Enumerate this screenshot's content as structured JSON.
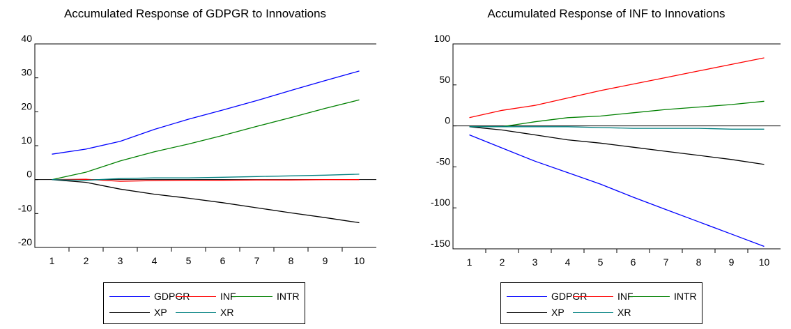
{
  "legend_series": [
    "GDPGR",
    "INF",
    "INTR",
    "XP",
    "XR"
  ],
  "colors": {
    "GDPGR": "#0000ff",
    "INF": "#ff0000",
    "INTR": "#008000",
    "XP": "#000000",
    "XR": "#008080"
  },
  "chart_data": [
    {
      "type": "line",
      "title": "Accumulated Response of GDPGR to Innovations",
      "x": [
        1,
        2,
        3,
        4,
        5,
        6,
        7,
        8,
        9,
        10
      ],
      "yticks": [
        40,
        30,
        20,
        10,
        0,
        -10,
        -20
      ],
      "ylim": [
        -20,
        40
      ],
      "series": [
        {
          "name": "GDPGR",
          "values": [
            7.5,
            9.0,
            11.3,
            14.8,
            17.8,
            20.5,
            23.3,
            26.3,
            29.2,
            32.0
          ]
        },
        {
          "name": "INF",
          "values": [
            0,
            0.1,
            -0.5,
            -0.3,
            -0.2,
            -0.2,
            -0.1,
            -0.1,
            0,
            0
          ]
        },
        {
          "name": "INTR",
          "values": [
            0,
            2.2,
            5.5,
            8.2,
            10.5,
            13.0,
            15.7,
            18.3,
            21.0,
            23.5
          ]
        },
        {
          "name": "XP",
          "values": [
            0,
            -0.8,
            -2.8,
            -4.3,
            -5.5,
            -6.8,
            -8.3,
            -9.8,
            -11.2,
            -12.7
          ]
        },
        {
          "name": "XR",
          "values": [
            0,
            -0.2,
            0.3,
            0.5,
            0.5,
            0.7,
            0.9,
            1.1,
            1.3,
            1.6
          ]
        }
      ]
    },
    {
      "type": "line",
      "title": "Accumulated Response of INF to Innovations",
      "x": [
        1,
        2,
        3,
        4,
        5,
        6,
        7,
        8,
        9,
        10
      ],
      "yticks": [
        100,
        50,
        0,
        -50,
        -100,
        -150
      ],
      "ylim": [
        -150,
        100
      ],
      "series": [
        {
          "name": "GDPGR",
          "values": [
            -11,
            -27,
            -43,
            -57,
            -71,
            -87,
            -102,
            -117,
            -132,
            -147
          ]
        },
        {
          "name": "INF",
          "values": [
            10,
            19,
            25,
            34,
            43,
            51,
            59,
            67,
            75,
            83
          ]
        },
        {
          "name": "INTR",
          "values": [
            -1,
            -1,
            5,
            10,
            12,
            16,
            20,
            23,
            26,
            30
          ]
        },
        {
          "name": "XP",
          "values": [
            -1,
            -5,
            -11,
            -17,
            -21,
            -26,
            -31,
            -36,
            -41,
            -47
          ]
        },
        {
          "name": "XR",
          "values": [
            -1,
            -1,
            -1,
            -1,
            -2,
            -3,
            -3,
            -3,
            -4,
            -4
          ]
        }
      ]
    }
  ]
}
